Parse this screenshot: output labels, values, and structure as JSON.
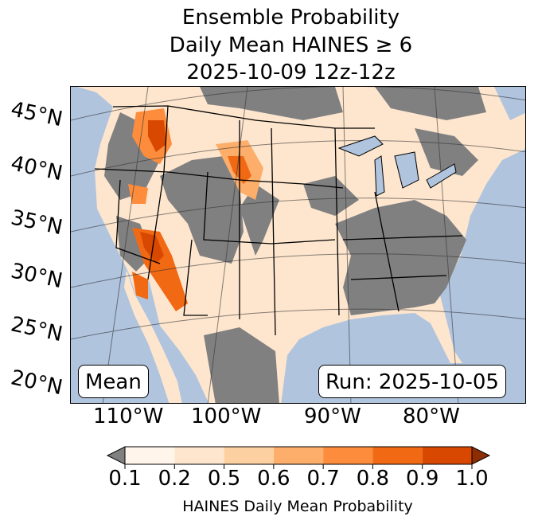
{
  "title": {
    "line1": "Ensemble Probability",
    "line2": "Daily Mean HAINES ≥ 6",
    "line3": "2025-10-09 12z-12z"
  },
  "map": {
    "lat_labels": [
      "45°N",
      "40°N",
      "35°N",
      "30°N",
      "25°N",
      "20°N"
    ],
    "lon_labels": [
      "110°W",
      "100°W",
      "90°W",
      "80°W"
    ],
    "stat_label": "Mean",
    "run_label": "Run: 2025-10-05",
    "colors": {
      "ocean": "#b0c4de",
      "below": "#808080"
    }
  },
  "colorbar": {
    "ticks": [
      "0.1",
      "0.2",
      "0.5",
      "0.6",
      "0.7",
      "0.8",
      "0.9",
      "1.0"
    ],
    "colors": [
      "#fff5eb",
      "#fee6ce",
      "#fdd0a2",
      "#fdae6b",
      "#fd8d3c",
      "#f16913",
      "#d94801"
    ],
    "under_color": "#808080",
    "over_color": "#8c2d04",
    "label": "HAINES Daily Mean Probability"
  }
}
